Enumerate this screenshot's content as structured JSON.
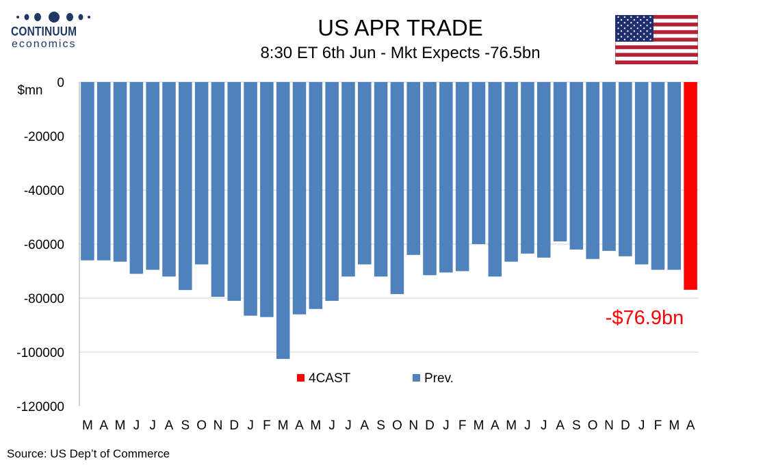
{
  "logo": {
    "brand": "CONTINUUM",
    "sub": "economics"
  },
  "header": {
    "title": "US APR TRADE",
    "subtitle": "8:30 ET 6th Jun - Mkt Expects -76.5bn"
  },
  "flag": {
    "name": "us-flag-icon"
  },
  "source": "Source: US Dep’t of Commerce",
  "colors": {
    "prev": "#4f81bd",
    "forecast": "#ff0000",
    "brand": "#1f3864",
    "grid": "#d0d0d0"
  },
  "chart_data": {
    "type": "bar",
    "ylabel": "$mn",
    "ylim": [
      -120000,
      0
    ],
    "yticks": [
      0,
      -20000,
      -40000,
      -60000,
      -80000,
      -100000,
      -120000
    ],
    "grid": true,
    "legend_position": "bottom-center",
    "annotation": "-$76.9bn",
    "categories": [
      "M",
      "A",
      "M",
      "J",
      "J",
      "A",
      "S",
      "O",
      "N",
      "D",
      "J",
      "F",
      "M",
      "A",
      "M",
      "J",
      "J",
      "A",
      "S",
      "O",
      "N",
      "D",
      "J",
      "F",
      "M",
      "A",
      "M",
      "J",
      "J",
      "A",
      "S",
      "O",
      "N",
      "D",
      "J",
      "F",
      "M",
      "A"
    ],
    "series": [
      {
        "name": "Prev.",
        "values": [
          -66000,
          -66000,
          -66500,
          -71000,
          -69500,
          -72000,
          -77000,
          -67500,
          -79500,
          -81000,
          -86500,
          -87000,
          -102500,
          -86000,
          -84000,
          -81000,
          -72000,
          -67500,
          -72000,
          -78500,
          -64000,
          -71500,
          -70500,
          -70000,
          -60000,
          -72000,
          -66500,
          -63500,
          -65000,
          -59000,
          -62000,
          -65500,
          -62500,
          -64500,
          -67500,
          -69500,
          -69500,
          null
        ]
      },
      {
        "name": "4CAST",
        "values": [
          null,
          null,
          null,
          null,
          null,
          null,
          null,
          null,
          null,
          null,
          null,
          null,
          null,
          null,
          null,
          null,
          null,
          null,
          null,
          null,
          null,
          null,
          null,
          null,
          null,
          null,
          null,
          null,
          null,
          null,
          null,
          null,
          null,
          null,
          null,
          null,
          null,
          -76900
        ]
      }
    ]
  }
}
